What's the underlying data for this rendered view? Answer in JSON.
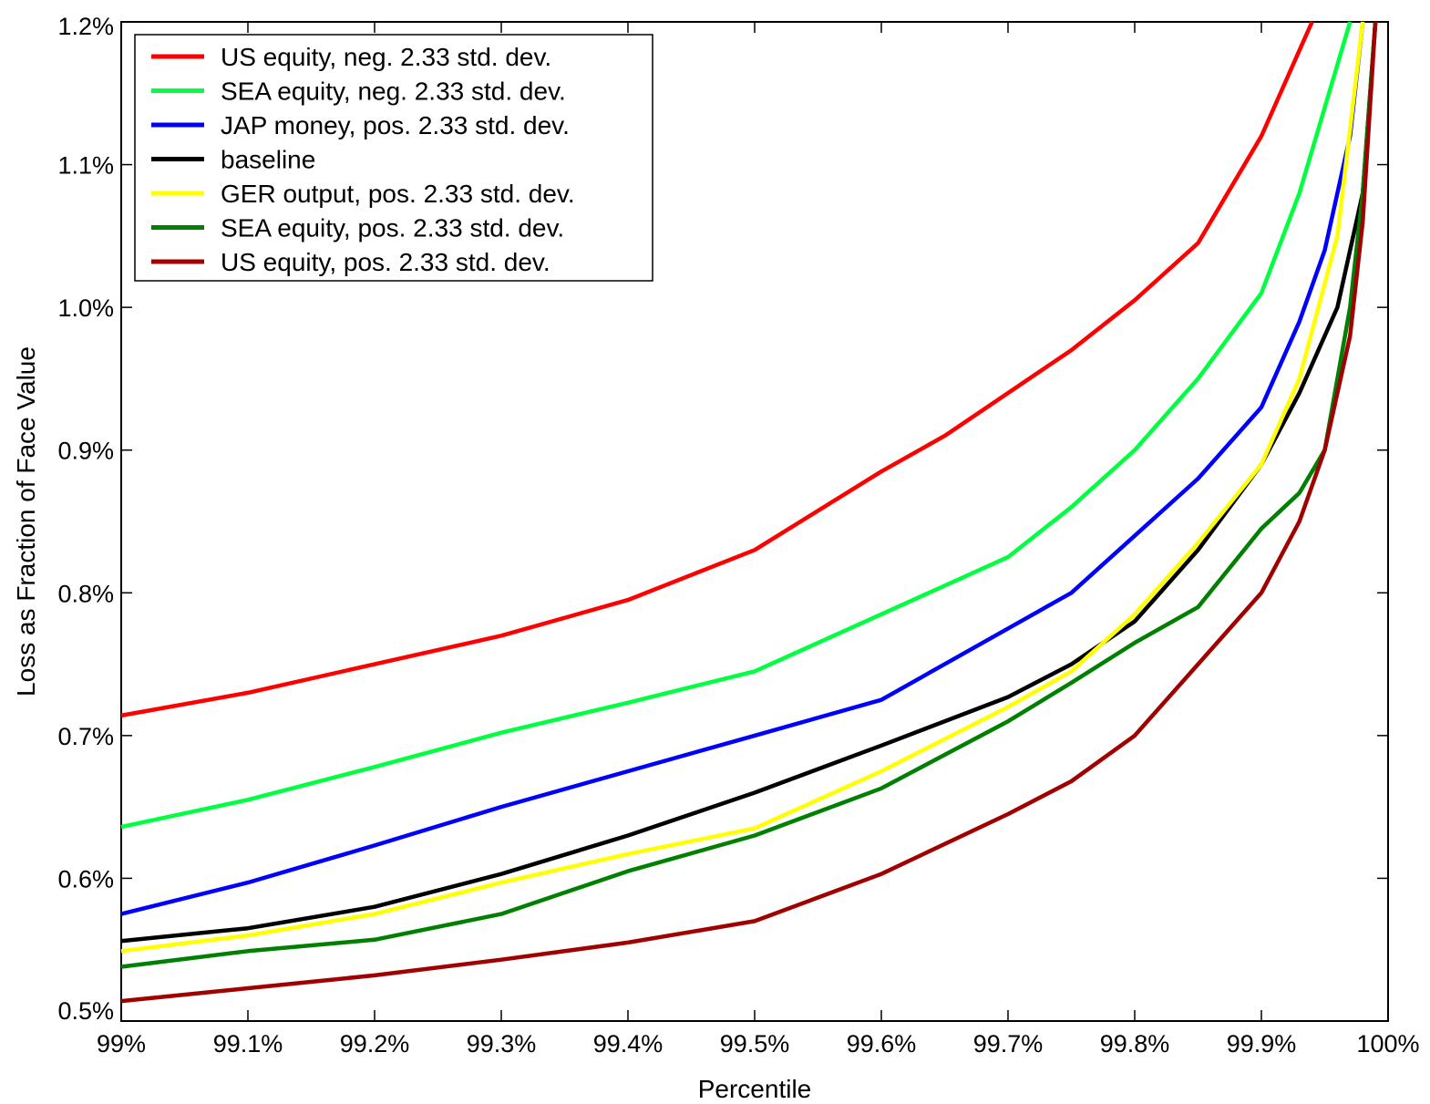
{
  "chart_data": {
    "type": "line",
    "title": "",
    "xlabel": "Percentile",
    "ylabel": "Loss as Fraction of Face Value",
    "xlim": [
      99.0,
      100.0
    ],
    "ylim": [
      0.5,
      1.2
    ],
    "grid": false,
    "legend_position": "top-left",
    "x_ticks": [
      99.0,
      99.1,
      99.2,
      99.3,
      99.4,
      99.5,
      99.6,
      99.7,
      99.8,
      99.9,
      100.0
    ],
    "x_tick_labels": [
      "99%",
      "99.1%",
      "99.2%",
      "99.3%",
      "99.4%",
      "99.5%",
      "99.6%",
      "99.7%",
      "99.8%",
      "99.9%",
      "100%"
    ],
    "y_ticks": [
      0.5,
      0.6,
      0.7,
      0.8,
      0.9,
      1.0,
      1.1,
      1.2
    ],
    "y_tick_labels": [
      "0.5%",
      "0.6%",
      "0.7%",
      "0.8%",
      "0.9%",
      "1.0%",
      "1.1%",
      "1.2%"
    ],
    "series": [
      {
        "name": "US equity, neg. 2.33 std. dev.",
        "color": "#ff0000",
        "x": [
          99.0,
          99.1,
          99.2,
          99.3,
          99.4,
          99.5,
          99.6,
          99.65,
          99.7,
          99.75,
          99.8,
          99.85,
          99.9,
          99.93,
          99.94
        ],
        "y": [
          0.714,
          0.73,
          0.75,
          0.77,
          0.795,
          0.83,
          0.885,
          0.91,
          0.94,
          0.97,
          1.005,
          1.045,
          1.12,
          1.18,
          1.2
        ]
      },
      {
        "name": "SEA equity, neg. 2.33 std. dev.",
        "color": "#00ff40",
        "x": [
          99.0,
          99.1,
          99.2,
          99.3,
          99.4,
          99.5,
          99.6,
          99.7,
          99.75,
          99.8,
          99.85,
          99.9,
          99.93,
          99.96,
          99.97
        ],
        "y": [
          0.636,
          0.655,
          0.678,
          0.702,
          0.723,
          0.745,
          0.785,
          0.825,
          0.86,
          0.9,
          0.95,
          1.01,
          1.08,
          1.17,
          1.2
        ]
      },
      {
        "name": "JAP money, pos. 2.33 std. dev.",
        "color": "#0000ff",
        "x": [
          99.0,
          99.1,
          99.2,
          99.3,
          99.4,
          99.5,
          99.6,
          99.7,
          99.75,
          99.8,
          99.85,
          99.9,
          99.93,
          99.95,
          99.97,
          99.98
        ],
        "y": [
          0.575,
          0.597,
          0.623,
          0.65,
          0.675,
          0.7,
          0.725,
          0.775,
          0.8,
          0.84,
          0.88,
          0.93,
          0.99,
          1.04,
          1.12,
          1.2
        ]
      },
      {
        "name": "baseline",
        "color": "#000000",
        "x": [
          99.0,
          99.1,
          99.2,
          99.3,
          99.4,
          99.5,
          99.6,
          99.7,
          99.75,
          99.8,
          99.85,
          99.9,
          99.93,
          99.96,
          99.98,
          99.99
        ],
        "y": [
          0.556,
          0.565,
          0.58,
          0.603,
          0.63,
          0.66,
          0.693,
          0.727,
          0.75,
          0.78,
          0.83,
          0.89,
          0.94,
          1.0,
          1.08,
          1.2
        ]
      },
      {
        "name": "GER output, pos. 2.33 std. dev.",
        "color": "#ffff00",
        "x": [
          99.0,
          99.1,
          99.2,
          99.3,
          99.4,
          99.5,
          99.6,
          99.7,
          99.75,
          99.8,
          99.85,
          99.9,
          99.93,
          99.96,
          99.98
        ],
        "y": [
          0.549,
          0.56,
          0.575,
          0.597,
          0.617,
          0.635,
          0.675,
          0.72,
          0.745,
          0.785,
          0.835,
          0.89,
          0.95,
          1.05,
          1.2
        ]
      },
      {
        "name": "SEA equity, pos. 2.33 std. dev.",
        "color": "#008000",
        "x": [
          99.0,
          99.1,
          99.2,
          99.3,
          99.4,
          99.5,
          99.6,
          99.7,
          99.75,
          99.8,
          99.85,
          99.9,
          99.93,
          99.95,
          99.97,
          99.98,
          99.99
        ],
        "y": [
          0.538,
          0.549,
          0.557,
          0.575,
          0.605,
          0.63,
          0.663,
          0.71,
          0.737,
          0.765,
          0.79,
          0.845,
          0.87,
          0.9,
          1.0,
          1.08,
          1.2
        ]
      },
      {
        "name": "US equity, pos. 2.33 std. dev.",
        "color": "#a00000",
        "x": [
          99.0,
          99.1,
          99.2,
          99.3,
          99.4,
          99.5,
          99.6,
          99.7,
          99.75,
          99.8,
          99.85,
          99.9,
          99.93,
          99.95,
          99.97,
          99.98,
          99.99
        ],
        "y": [
          0.514,
          0.523,
          0.532,
          0.543,
          0.555,
          0.57,
          0.603,
          0.645,
          0.668,
          0.7,
          0.75,
          0.8,
          0.85,
          0.9,
          0.98,
          1.06,
          1.2
        ]
      }
    ]
  }
}
